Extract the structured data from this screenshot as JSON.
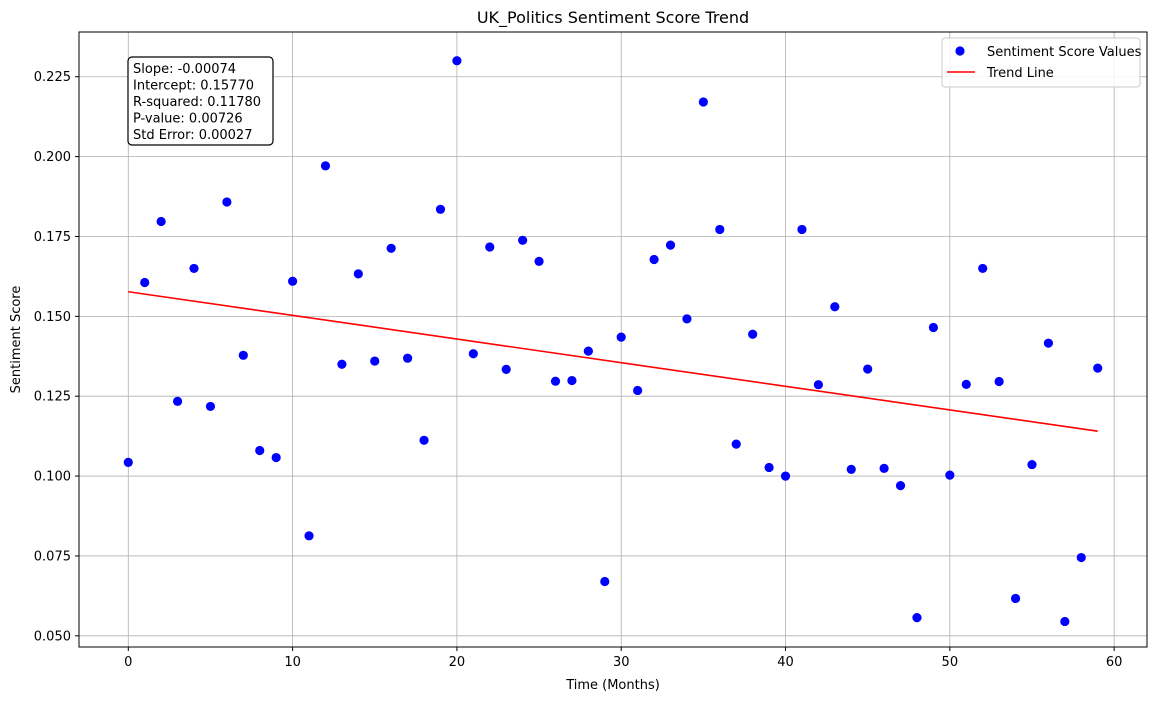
{
  "chart_data": {
    "type": "scatter",
    "title": "UK_Politics Sentiment Score Trend",
    "xlabel": "Time (Months)",
    "ylabel": "Sentiment Score",
    "xlim": [
      -3,
      62
    ],
    "ylim": [
      0.0465,
      0.239
    ],
    "x_ticks": [
      0,
      10,
      20,
      30,
      40,
      50,
      60
    ],
    "x_tick_labels": [
      "0",
      "10",
      "20",
      "30",
      "40",
      "50",
      "60"
    ],
    "y_ticks": [
      0.05,
      0.075,
      0.1,
      0.125,
      0.15,
      0.175,
      0.2,
      0.225
    ],
    "y_tick_labels": [
      "0.050",
      "0.075",
      "0.100",
      "0.125",
      "0.150",
      "0.175",
      "0.200",
      "0.225"
    ],
    "grid": true,
    "legend_position": "top-right",
    "series": [
      {
        "name": "Sentiment Score Values",
        "kind": "scatter",
        "color": "#0000ff",
        "x": [
          0,
          1,
          2,
          3,
          4,
          5,
          6,
          7,
          8,
          9,
          10,
          11,
          12,
          13,
          14,
          15,
          16,
          17,
          18,
          19,
          20,
          21,
          22,
          23,
          24,
          25,
          26,
          27,
          28,
          29,
          30,
          31,
          32,
          33,
          34,
          35,
          36,
          37,
          38,
          39,
          40,
          41,
          42,
          43,
          44,
          45,
          46,
          47,
          48,
          49,
          50,
          51,
          52,
          53,
          54,
          55,
          56,
          57,
          58,
          59
        ],
        "y": [
          0.1043,
          0.1606,
          0.1797,
          0.1234,
          0.165,
          0.1218,
          0.1858,
          0.1378,
          0.108,
          0.1058,
          0.161,
          0.0813,
          0.1971,
          0.135,
          0.1633,
          0.136,
          0.1713,
          0.1369,
          0.1112,
          0.1835,
          0.23,
          0.1383,
          0.1717,
          0.1334,
          0.1738,
          0.1672,
          0.1297,
          0.1299,
          0.1391,
          0.067,
          0.1435,
          0.1268,
          0.1678,
          0.1723,
          0.1492,
          0.2171,
          0.1772,
          0.11,
          0.1444,
          0.1027,
          0.1,
          0.1772,
          0.1286,
          0.153,
          0.1021,
          0.1335,
          0.1024,
          0.097,
          0.0557,
          0.1465,
          0.1003,
          0.1287,
          0.165,
          0.1296,
          0.0617,
          0.1036,
          0.1416,
          0.0545,
          0.0745,
          0.1338
        ]
      },
      {
        "name": "Trend Line",
        "kind": "line",
        "color": "#ff0000",
        "x": [
          0,
          59
        ],
        "y": [
          0.1577,
          0.11404
        ]
      }
    ],
    "annotation": [
      "Slope: -0.00074",
      "Intercept: 0.15770",
      "R-squared: 0.11780",
      "P-value: 0.00726",
      "Std Error: 0.00027"
    ]
  }
}
